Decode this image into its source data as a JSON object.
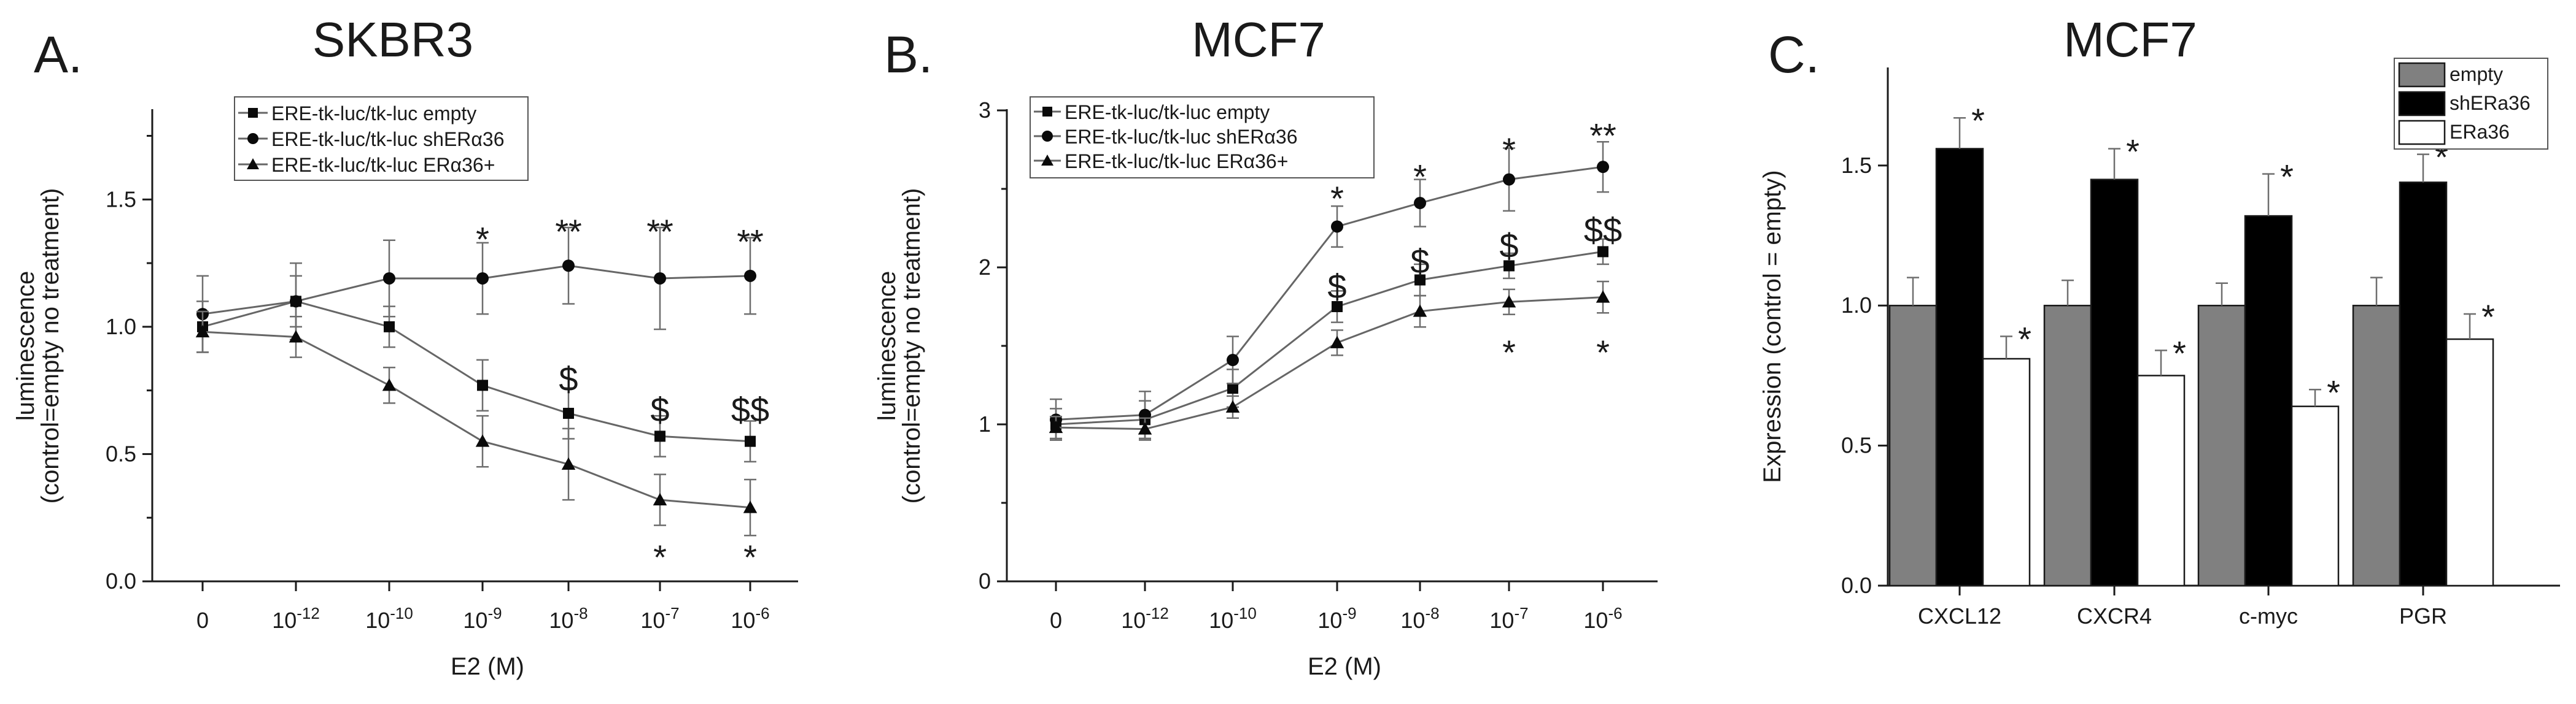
{
  "chart_data": [
    {
      "type": "line",
      "panel": "A.",
      "title": "SKBR3",
      "xlabel": "E2 (M)",
      "ylabel": [
        "luminescence",
        "(control=empty no treatment)"
      ],
      "categories": [
        {
          "base": "0",
          "exp": ""
        },
        {
          "base": "10",
          "exp": "-12"
        },
        {
          "base": "10",
          "exp": "-10"
        },
        {
          "base": "10",
          "exp": "-9"
        },
        {
          "base": "10",
          "exp": "-8"
        },
        {
          "base": "10",
          "exp": "-7"
        },
        {
          "base": "10",
          "exp": "-6"
        }
      ],
      "ylim": [
        0,
        1.85
      ],
      "yticks": [
        0.0,
        0.5,
        1.0,
        1.5
      ],
      "ytick_labels": [
        "0.0",
        "0.5",
        "1.0",
        "1.5"
      ],
      "legend_position": "top-center",
      "series": [
        {
          "name": "ERE-tk-luc/tk-luc empty",
          "marker": "square",
          "values": [
            1.0,
            1.1,
            1.0,
            0.77,
            0.66,
            0.57,
            0.55
          ],
          "errors": [
            0.1,
            0.1,
            0.08,
            0.1,
            0.1,
            0.08,
            0.08
          ]
        },
        {
          "name": "ERE-tk-luc/tk-luc shERα36",
          "marker": "circle",
          "values": [
            1.05,
            1.1,
            1.19,
            1.19,
            1.24,
            1.19,
            1.2
          ],
          "errors": [
            0.15,
            0.15,
            0.15,
            0.14,
            0.15,
            0.2,
            0.15
          ]
        },
        {
          "name": "ERE-tk-luc/tk-luc ERα36+",
          "marker": "triangle",
          "values": [
            0.98,
            0.96,
            0.77,
            0.55,
            0.46,
            0.32,
            0.29
          ],
          "errors": [
            0.08,
            0.08,
            0.07,
            0.1,
            0.14,
            0.1,
            0.11
          ]
        }
      ],
      "annotations": [
        {
          "text": "*",
          "x": 3,
          "y": 1.37
        },
        {
          "text": "**",
          "x": 4,
          "y": 1.4
        },
        {
          "text": "**",
          "x": 5,
          "y": 1.4
        },
        {
          "text": "**",
          "x": 6,
          "y": 1.36
        },
        {
          "text": "$",
          "x": 4,
          "y": 0.82
        },
        {
          "text": "$",
          "x": 5,
          "y": 0.7
        },
        {
          "text": "$$",
          "x": 6,
          "y": 0.7
        },
        {
          "text": "*",
          "x": 5,
          "y": 0.12
        },
        {
          "text": "*",
          "x": 6,
          "y": 0.12
        }
      ]
    },
    {
      "type": "line",
      "panel": "B.",
      "title": "MCF7",
      "xlabel": "E2 (M)",
      "ylabel": [
        "luminescence",
        "(control=empty no treatment)"
      ],
      "categories": [
        {
          "base": "0",
          "exp": ""
        },
        {
          "base": "10",
          "exp": "-12"
        },
        {
          "base": "10",
          "exp": "-10"
        },
        {
          "base": "10",
          "exp": "-9"
        },
        {
          "base": "10",
          "exp": "-8"
        },
        {
          "base": "10",
          "exp": "-7"
        },
        {
          "base": "10",
          "exp": "-6"
        }
      ],
      "ylim": [
        0,
        3
      ],
      "yticks": [
        0,
        1,
        2,
        3
      ],
      "ytick_labels": [
        "0",
        "1",
        "2",
        "3"
      ],
      "legend_position": "top-left",
      "series": [
        {
          "name": "ERE-tk-luc/tk-luc empty",
          "marker": "square",
          "values": [
            1.0,
            1.03,
            1.23,
            1.75,
            1.92,
            2.01,
            2.1
          ],
          "errors": [
            0.1,
            0.12,
            0.12,
            0.1,
            0.1,
            0.08,
            0.08
          ]
        },
        {
          "name": "ERE-tk-luc/tk-luc shERα36",
          "marker": "circle",
          "values": [
            1.03,
            1.06,
            1.41,
            2.26,
            2.41,
            2.56,
            2.64
          ],
          "errors": [
            0.13,
            0.15,
            0.15,
            0.13,
            0.15,
            0.2,
            0.16
          ]
        },
        {
          "name": "ERE-tk-luc/tk-luc ERα36+",
          "marker": "triangle",
          "values": [
            0.98,
            0.97,
            1.11,
            1.52,
            1.72,
            1.78,
            1.81
          ],
          "errors": [
            0.07,
            0.07,
            0.07,
            0.08,
            0.1,
            0.08,
            0.1
          ]
        }
      ],
      "annotations": [
        {
          "text": "*",
          "x": 3,
          "y": 2.48
        },
        {
          "text": "*",
          "x": 4,
          "y": 2.62
        },
        {
          "text": "*",
          "x": 5,
          "y": 2.79
        },
        {
          "text": "**",
          "x": 6,
          "y": 2.88
        },
        {
          "text": "$",
          "x": 3,
          "y": 1.92
        },
        {
          "text": "$",
          "x": 4,
          "y": 2.08
        },
        {
          "text": "$",
          "x": 5,
          "y": 2.18
        },
        {
          "text": "$$",
          "x": 6,
          "y": 2.28
        },
        {
          "text": "*",
          "x": 5,
          "y": 1.5
        },
        {
          "text": "*",
          "x": 6,
          "y": 1.5
        }
      ]
    },
    {
      "type": "bar",
      "panel": "C.",
      "title": "MCF7",
      "xlabel": "",
      "ylabel": "Expression (control = empty)",
      "categories": [
        "CXCL12",
        "CXCR4",
        "c-myc",
        "PGR"
      ],
      "ylim": [
        0,
        1.85
      ],
      "yticks": [
        0.0,
        0.5,
        1.0,
        1.5
      ],
      "ytick_labels": [
        "0.0",
        "0.5",
        "1.0",
        "1.5"
      ],
      "legend_position": "top-right",
      "series": [
        {
          "name": "empty",
          "color": "#808080",
          "values": [
            1.0,
            1.0,
            1.0,
            1.0
          ],
          "errors": [
            0.1,
            0.09,
            0.08,
            0.1
          ]
        },
        {
          "name": "shERa36",
          "color": "#000000",
          "values": [
            1.56,
            1.45,
            1.32,
            1.44
          ],
          "errors": [
            0.11,
            0.11,
            0.15,
            0.1
          ]
        },
        {
          "name": "ERa36",
          "color": "#ffffff",
          "values": [
            0.81,
            0.75,
            0.64,
            0.88
          ],
          "errors": [
            0.08,
            0.09,
            0.06,
            0.09
          ]
        }
      ],
      "annotations": [
        {
          "text": "*",
          "series": 1,
          "category": 0
        },
        {
          "text": "*",
          "series": 2,
          "category": 0
        },
        {
          "text": "*",
          "series": 1,
          "category": 1
        },
        {
          "text": "*",
          "series": 2,
          "category": 1
        },
        {
          "text": "*",
          "series": 1,
          "category": 2
        },
        {
          "text": "*",
          "series": 2,
          "category": 2
        },
        {
          "text": "*",
          "series": 1,
          "category": 3
        },
        {
          "text": "*",
          "series": 2,
          "category": 3
        }
      ]
    }
  ]
}
